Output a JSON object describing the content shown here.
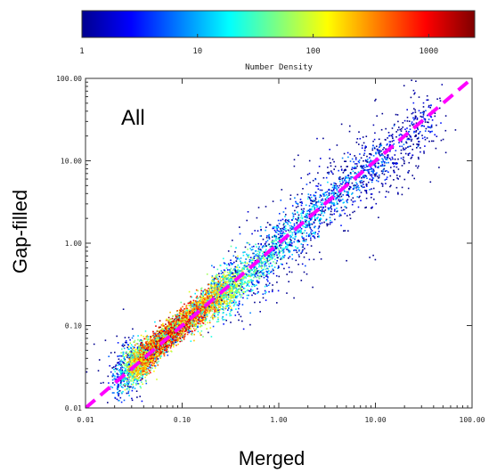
{
  "chart_data": {
    "type": "heatmap",
    "title": "",
    "annotation": "All",
    "xlabel": "Merged",
    "ylabel": "Gap-filled",
    "xscale": "log",
    "yscale": "log",
    "xlim": [
      0.01,
      100
    ],
    "ylim": [
      0.01,
      100
    ],
    "x_ticks": [
      "0.01",
      "0.10",
      "1.00",
      "10.00",
      "100.00"
    ],
    "y_ticks": [
      "0.01",
      "0.10",
      "1.00",
      "10.00",
      "100.00"
    ],
    "colorbar": {
      "label": "Number Density",
      "scale": "log",
      "range": [
        1,
        2500
      ],
      "ticks": [
        "1",
        "10",
        "100",
        "1000"
      ],
      "colormap": "jet",
      "placement": "top"
    },
    "density_ridge": {
      "description_values": "log10 points along the ridge of the point cloud (x,y) with relative density",
      "points": [
        {
          "x": 0.02,
          "y": 0.022,
          "density": 8
        },
        {
          "x": 0.03,
          "y": 0.032,
          "density": 300
        },
        {
          "x": 0.04,
          "y": 0.042,
          "density": 1500
        },
        {
          "x": 0.06,
          "y": 0.065,
          "density": 2500
        },
        {
          "x": 0.1,
          "y": 0.11,
          "density": 2000
        },
        {
          "x": 0.2,
          "y": 0.21,
          "density": 800
        },
        {
          "x": 0.35,
          "y": 0.33,
          "density": 150
        },
        {
          "x": 1,
          "y": 0.95,
          "density": 40
        },
        {
          "x": 3,
          "y": 3.2,
          "density": 20
        },
        {
          "x": 10,
          "y": 9,
          "density": 10
        },
        {
          "x": 40,
          "y": 38,
          "density": 5
        }
      ]
    },
    "reference_line": {
      "style": "dashed",
      "color": "#ff00ff",
      "x": [
        0.01,
        100
      ],
      "y": [
        0.01,
        100
      ]
    }
  }
}
